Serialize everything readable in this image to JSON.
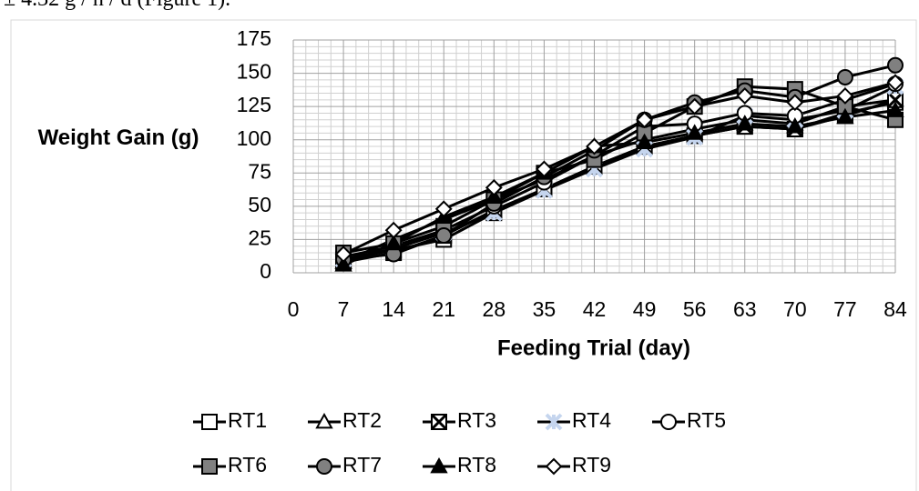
{
  "caption": "± 4.32 g / h / d (Figure 1).",
  "chart_data": {
    "type": "line",
    "y_label": "Weight Gain (g)",
    "x_label": "Feeding Trial (day)",
    "x": [
      7,
      14,
      21,
      28,
      35,
      42,
      49,
      56,
      63,
      70,
      77,
      84
    ],
    "xlim": [
      0,
      84
    ],
    "xticks": [
      0,
      7,
      14,
      21,
      28,
      35,
      42,
      49,
      56,
      63,
      70,
      77,
      84
    ],
    "ylim": [
      0,
      175
    ],
    "yticks": [
      0,
      25,
      50,
      75,
      100,
      125,
      150,
      175
    ],
    "grid": true,
    "legend": "bottom",
    "series": [
      {
        "name": "RT1",
        "color": "#000000",
        "marker": "square",
        "marker_fill": "#ffffff",
        "values": [
          10,
          17,
          25,
          45,
          63,
          80,
          95,
          103,
          110,
          108,
          120,
          128
        ]
      },
      {
        "name": "RT2",
        "color": "#000000",
        "marker": "triangle",
        "marker_fill": "#ffffff",
        "values": [
          8,
          25,
          40,
          55,
          70,
          88,
          100,
          108,
          115,
          112,
          125,
          130
        ]
      },
      {
        "name": "RT3",
        "color": "#000000",
        "marker": "xbox",
        "marker_fill": "#ffffff",
        "values": [
          8,
          15,
          28,
          47,
          63,
          80,
          95,
          103,
          110,
          108,
          118,
          130
        ]
      },
      {
        "name": "RT4",
        "color": "#000000",
        "marker": "asterisk",
        "marker_fill": "#c5d5ee",
        "values": [
          10,
          18,
          30,
          45,
          62,
          78,
          93,
          102,
          118,
          115,
          122,
          140
        ]
      },
      {
        "name": "RT5",
        "color": "#000000",
        "marker": "circle",
        "marker_fill": "#ffffff",
        "values": [
          12,
          20,
          32,
          50,
          68,
          88,
          110,
          112,
          120,
          118,
          130,
          142
        ]
      },
      {
        "name": "RT6",
        "color": "#000000",
        "marker": "square",
        "marker_fill": "#808080",
        "values": [
          15,
          22,
          35,
          55,
          75,
          85,
          105,
          125,
          140,
          138,
          125,
          115
        ]
      },
      {
        "name": "RT7",
        "color": "#000000",
        "marker": "circle",
        "marker_fill": "#808080",
        "values": [
          10,
          14,
          28,
          52,
          72,
          92,
          115,
          128,
          137,
          132,
          147,
          156
        ]
      },
      {
        "name": "RT8",
        "color": "#000000",
        "marker": "triangle",
        "marker_fill": "#000000",
        "values": [
          6,
          22,
          42,
          57,
          75,
          95,
          98,
          105,
          112,
          110,
          117,
          122
        ]
      },
      {
        "name": "RT9",
        "color": "#000000",
        "marker": "diamond",
        "marker_fill": "#ffffff",
        "values": [
          14,
          32,
          48,
          64,
          78,
          95,
          115,
          125,
          133,
          128,
          133,
          143
        ]
      }
    ]
  }
}
